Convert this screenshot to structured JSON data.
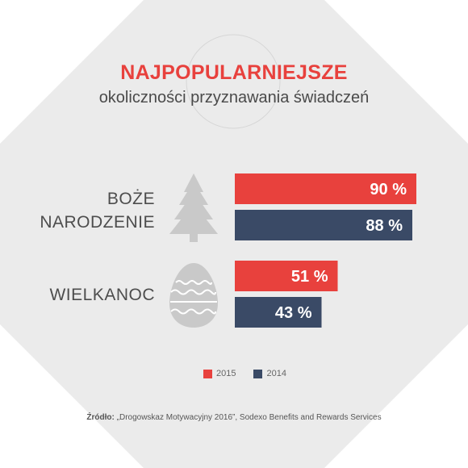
{
  "title": "NAJPOPULARNIEJSZE",
  "subtitle": "okoliczności przyznawania świadczeń",
  "colors": {
    "s2015": "#e8413d",
    "s2014": "#3a4a66",
    "background": "#ebebeb",
    "icon": "#c9c9c9"
  },
  "chart_data": {
    "type": "bar",
    "orientation": "horizontal",
    "categories": [
      "BOŻE NARODZENIE",
      "WIELKANOC"
    ],
    "category_lines": [
      [
        "BOŻE",
        "NARODZENIE"
      ],
      [
        "WIELKANOC"
      ]
    ],
    "series": [
      {
        "name": "2015",
        "values": [
          90,
          51
        ],
        "labels": [
          "90 %",
          "51 %"
        ],
        "color": "#e8413d"
      },
      {
        "name": "2014",
        "values": [
          88,
          43
        ],
        "labels": [
          "88 %",
          "43 %"
        ],
        "color": "#3a4a66"
      }
    ],
    "unit": "%",
    "xlim": [
      0,
      100
    ],
    "legend": "bottom-center"
  },
  "icons": [
    "christmas-tree-icon",
    "easter-egg-icon"
  ],
  "source": {
    "label": "Źródło:",
    "text": " „Drogowskaz Motywacyjny 2016”, Sodexo Benefits and Rewards Services"
  }
}
